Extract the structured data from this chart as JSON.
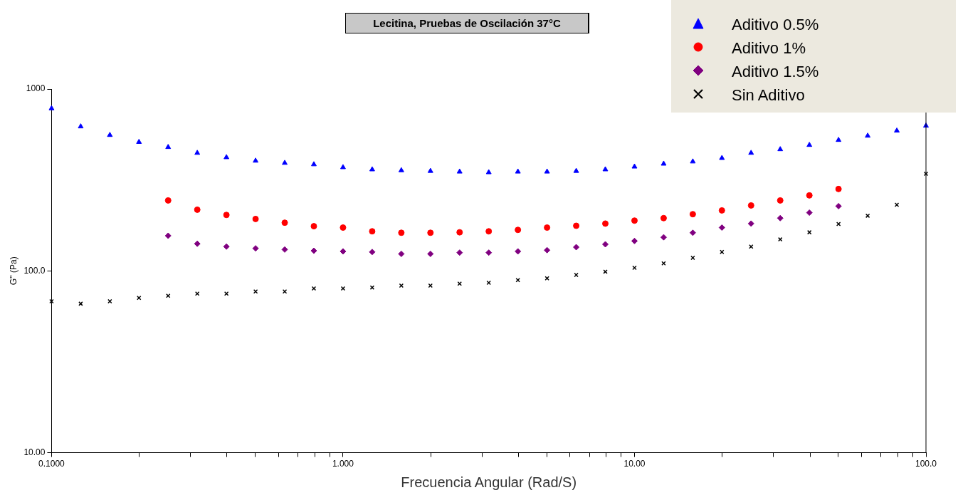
{
  "chart_data": {
    "type": "scatter",
    "title": "Lecitina, Pruebas de Oscilación 37°C",
    "xlabel": "Frecuencia Angular (Rad/S)",
    "ylabel": "G'' (Pa)",
    "log": "xy",
    "grid": false,
    "legend": "top right",
    "xlim": [
      0.1,
      100
    ],
    "ylim": [
      10,
      1000
    ],
    "xticks": [
      {
        "value": 0.1,
        "label": "0.1000"
      },
      {
        "value": 0.2,
        "label": null
      },
      {
        "value": 0.3,
        "label": null
      },
      {
        "value": 0.4,
        "label": null
      },
      {
        "value": 0.5,
        "label": null
      },
      {
        "value": 0.6,
        "label": null
      },
      {
        "value": 0.7,
        "label": null
      },
      {
        "value": 0.8,
        "label": null
      },
      {
        "value": 0.9,
        "label": null
      },
      {
        "value": 1,
        "label": "1.000"
      },
      {
        "value": 2,
        "label": null
      },
      {
        "value": 3,
        "label": null
      },
      {
        "value": 4,
        "label": null
      },
      {
        "value": 5,
        "label": null
      },
      {
        "value": 6,
        "label": null
      },
      {
        "value": 7,
        "label": null
      },
      {
        "value": 8,
        "label": null
      },
      {
        "value": 9,
        "label": null
      },
      {
        "value": 10,
        "label": "10.00"
      },
      {
        "value": 20,
        "label": null
      },
      {
        "value": 30,
        "label": null
      },
      {
        "value": 40,
        "label": null
      },
      {
        "value": 50,
        "label": null
      },
      {
        "value": 60,
        "label": null
      },
      {
        "value": 70,
        "label": null
      },
      {
        "value": 80,
        "label": null
      },
      {
        "value": 90,
        "label": null
      },
      {
        "value": 100,
        "label": "100.0"
      }
    ],
    "yticks": [
      {
        "value": 10,
        "label": "10.00"
      },
      {
        "value": 100,
        "label": "100.0"
      },
      {
        "value": 1000,
        "label": "1000"
      }
    ],
    "x": [
      0.1,
      0.1259,
      0.1585,
      0.1995,
      0.2512,
      0.3162,
      0.3981,
      0.5012,
      0.631,
      0.7943,
      1,
      1.259,
      1.585,
      1.995,
      2.512,
      3.162,
      3.981,
      5.012,
      6.31,
      7.943,
      10,
      12.59,
      15.85,
      19.95,
      25.12,
      31.62,
      39.81,
      50.12,
      63.1,
      79.43,
      100
    ],
    "series": [
      {
        "name": "Aditivo 0.5%",
        "color": "#0000ff",
        "marker": "triangle",
        "values": [
          782,
          622,
          558,
          511,
          479,
          445,
          421,
          403,
          392,
          385,
          371,
          361,
          357,
          354,
          351,
          348,
          351,
          351,
          354,
          361,
          374,
          388,
          399,
          417,
          445,
          466,
          492,
          524,
          553,
          590,
          628
        ]
      },
      {
        "name": "Aditivo 1%",
        "color": "#ff0000",
        "marker": "circle",
        "values": [
          null,
          null,
          null,
          null,
          244,
          217,
          203,
          193,
          184,
          176,
          173,
          165,
          162,
          162,
          163,
          165,
          168,
          173,
          177,
          182,
          189,
          195,
          205,
          215,
          229,
          244,
          260,
          282,
          null,
          null,
          null
        ]
      },
      {
        "name": "Aditivo 1.5%",
        "color": "#800080",
        "marker": "diamond",
        "values": [
          null,
          null,
          null,
          null,
          156,
          141,
          136,
          133,
          131,
          129,
          128,
          127,
          124,
          124,
          126,
          126,
          128,
          130,
          135,
          140,
          146,
          153,
          162,
          173,
          182,
          195,
          209,
          227,
          null,
          null,
          null
        ]
      },
      {
        "name": "Sin Aditivo",
        "color": "#000000",
        "marker": "cross",
        "values": [
          68,
          66,
          68,
          71,
          73,
          75,
          75,
          77,
          77,
          80,
          80,
          81,
          83,
          83,
          85,
          86,
          89,
          91,
          95,
          99,
          104,
          110,
          118,
          127,
          136,
          149,
          163,
          181,
          201,
          231,
          342
        ]
      }
    ]
  }
}
